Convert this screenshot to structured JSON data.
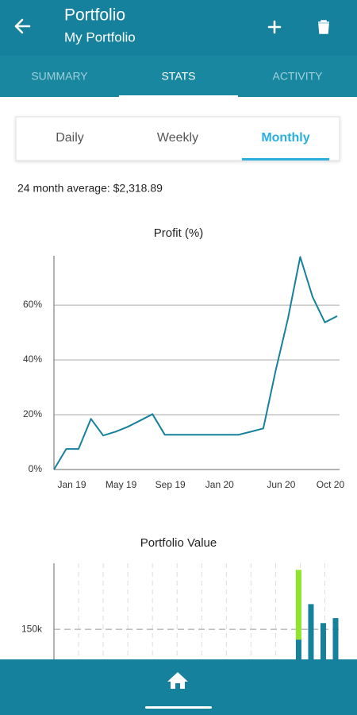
{
  "header": {
    "title": "Portfolio",
    "subtitle": "My Portfolio"
  },
  "tabs": [
    "SUMMARY",
    "STATS",
    "ACTIVITY"
  ],
  "tab_selected": 1,
  "periods": [
    "Daily",
    "Weekly",
    "Monthly"
  ],
  "period_selected": 2,
  "average": "24 month average: $2,318.89",
  "chart_data": [
    {
      "type": "line",
      "title": "Profit (%)",
      "categories": [
        null,
        "Jan 19",
        null,
        null,
        null,
        "May 19",
        null,
        null,
        null,
        "Sep 19",
        null,
        null,
        null,
        "Jan 20",
        null,
        null,
        null,
        null,
        "Jun 20",
        null,
        null,
        null,
        "Oct 20",
        null
      ],
      "series": [
        {
          "color": "#16819c",
          "values": [
            0,
            7.5,
            7.5,
            18.5,
            12.4,
            13.8,
            15.6,
            17.9,
            20.2,
            12.7,
            12.7,
            12.7,
            12.7,
            12.7,
            12.7,
            12.7,
            13.8,
            15,
            36,
            55,
            77.6,
            63,
            53.7,
            56
          ]
        }
      ],
      "ylim": [
        0,
        78
      ],
      "yticks": [
        {
          "value": 0,
          "label": "0%"
        },
        {
          "value": 20,
          "label": "20%"
        },
        {
          "value": 40,
          "label": "40%"
        },
        {
          "value": 60,
          "label": "60%"
        }
      ],
      "grid": true
    },
    {
      "type": "bar",
      "title": "Portfolio Value",
      "stacked": true,
      "categories": [
        null,
        null,
        null,
        null,
        null,
        null,
        null,
        null,
        null,
        null,
        null,
        null,
        null,
        null,
        null,
        null,
        null,
        null,
        null,
        null,
        null,
        null,
        null,
        null
      ],
      "series": [
        {
          "color": "#16819c",
          "values": [
            null,
            null,
            null,
            null,
            null,
            null,
            null,
            null,
            null,
            null,
            null,
            null,
            null,
            null,
            null,
            null,
            null,
            null,
            null,
            null,
            125000,
            211000,
            165000,
            177000
          ]
        },
        {
          "color": "#8ee62a",
          "values": [
            null,
            null,
            null,
            null,
            null,
            null,
            null,
            null,
            null,
            null,
            null,
            null,
            null,
            null,
            null,
            null,
            null,
            null,
            null,
            null,
            169000,
            null,
            null,
            null
          ]
        }
      ],
      "ylim": [
        0,
        310000
      ],
      "yticks": [
        {
          "value": 150000,
          "label": "150k"
        }
      ],
      "grid": "dashed"
    }
  ]
}
